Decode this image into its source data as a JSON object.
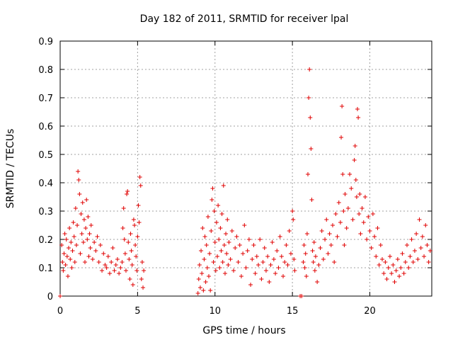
{
  "chart_data": {
    "type": "scatter",
    "title": "Day 182 of 2011, SRMTID for receiver lpal",
    "xlabel": "GPS time / hours",
    "ylabel": "SRMTID / TECUs",
    "xlim": [
      0,
      24
    ],
    "ylim": [
      0,
      0.9
    ],
    "xticks": [
      0,
      5,
      10,
      15,
      20
    ],
    "yticks": [
      0,
      0.1,
      0.2,
      0.3,
      0.4,
      0.5,
      0.6,
      0.7,
      0.8,
      0.9
    ],
    "xtick_labels": [
      "0",
      "5",
      "10",
      "15",
      "20"
    ],
    "ytick_labels": [
      "0",
      "0.1",
      "0.2",
      "0.3",
      "0.4",
      "0.5",
      "0.6",
      "0.7",
      "0.8",
      "0.9"
    ],
    "grid": true,
    "marker": "+",
    "color": "#e00000",
    "series": [
      {
        "name": "SRMTID",
        "points": [
          [
            0.0,
            0.0
          ],
          [
            0.1,
            0.18
          ],
          [
            0.15,
            0.12
          ],
          [
            0.2,
            0.09
          ],
          [
            0.25,
            0.15
          ],
          [
            0.3,
            0.22
          ],
          [
            0.35,
            0.11
          ],
          [
            0.4,
            0.2
          ],
          [
            0.45,
            0.14
          ],
          [
            0.5,
            0.07
          ],
          [
            0.55,
            0.17
          ],
          [
            0.6,
            0.24
          ],
          [
            0.65,
            0.13
          ],
          [
            0.7,
            0.19
          ],
          [
            0.75,
            0.1
          ],
          [
            0.8,
            0.16
          ],
          [
            0.85,
            0.26
          ],
          [
            0.9,
            0.21
          ],
          [
            0.95,
            0.12
          ],
          [
            1.0,
            0.31
          ],
          [
            1.05,
            0.18
          ],
          [
            1.1,
            0.25
          ],
          [
            1.15,
            0.44
          ],
          [
            1.2,
            0.41
          ],
          [
            1.25,
            0.36
          ],
          [
            1.3,
            0.15
          ],
          [
            1.35,
            0.29
          ],
          [
            1.4,
            0.22
          ],
          [
            1.45,
            0.33
          ],
          [
            1.5,
            0.19
          ],
          [
            1.55,
            0.27
          ],
          [
            1.6,
            0.12
          ],
          [
            1.65,
            0.24
          ],
          [
            1.7,
            0.34
          ],
          [
            1.75,
            0.2
          ],
          [
            1.8,
            0.28
          ],
          [
            1.85,
            0.14
          ],
          [
            1.9,
            0.22
          ],
          [
            1.95,
            0.17
          ],
          [
            2.0,
            0.25
          ],
          [
            2.1,
            0.13
          ],
          [
            2.2,
            0.19
          ],
          [
            2.3,
            0.16
          ],
          [
            2.4,
            0.21
          ],
          [
            2.5,
            0.12
          ],
          [
            2.6,
            0.18
          ],
          [
            2.7,
            0.09
          ],
          [
            2.8,
            0.15
          ],
          [
            2.9,
            0.11
          ],
          [
            3.0,
            0.1
          ],
          [
            3.1,
            0.14
          ],
          [
            3.2,
            0.08
          ],
          [
            3.3,
            0.12
          ],
          [
            3.4,
            0.17
          ],
          [
            3.5,
            0.09
          ],
          [
            3.6,
            0.11
          ],
          [
            3.7,
            0.13
          ],
          [
            3.8,
            0.08
          ],
          [
            3.9,
            0.1
          ],
          [
            4.0,
            0.12
          ],
          [
            4.05,
            0.24
          ],
          [
            4.1,
            0.31
          ],
          [
            4.15,
            0.2
          ],
          [
            4.2,
            0.15
          ],
          [
            4.25,
            0.09
          ],
          [
            4.3,
            0.36
          ],
          [
            4.35,
            0.37
          ],
          [
            4.4,
            0.19
          ],
          [
            4.45,
            0.13
          ],
          [
            4.5,
            0.06
          ],
          [
            4.55,
            0.22
          ],
          [
            4.6,
            0.16
          ],
          [
            4.65,
            0.11
          ],
          [
            4.7,
            0.04
          ],
          [
            4.75,
            0.27
          ],
          [
            4.8,
            0.25
          ],
          [
            4.85,
            0.18
          ],
          [
            4.9,
            0.14
          ],
          [
            4.95,
            0.09
          ],
          [
            5.0,
            0.21
          ],
          [
            5.05,
            0.32
          ],
          [
            5.1,
            0.26
          ],
          [
            5.15,
            0.42
          ],
          [
            5.2,
            0.39
          ],
          [
            5.25,
            0.06
          ],
          [
            5.3,
            0.12
          ],
          [
            5.35,
            0.03
          ],
          [
            5.4,
            0.09
          ],
          [
            8.9,
            0.01
          ],
          [
            8.95,
            0.06
          ],
          [
            9.0,
            0.11
          ],
          [
            9.05,
            0.03
          ],
          [
            9.1,
            0.16
          ],
          [
            9.15,
            0.08
          ],
          [
            9.2,
            0.24
          ],
          [
            9.25,
            0.02
          ],
          [
            9.3,
            0.13
          ],
          [
            9.35,
            0.21
          ],
          [
            9.4,
            0.05
          ],
          [
            9.45,
            0.18
          ],
          [
            9.5,
            0.1
          ],
          [
            9.55,
            0.28
          ],
          [
            9.6,
            0.07
          ],
          [
            9.65,
            0.15
          ],
          [
            9.7,
            0.02
          ],
          [
            9.75,
            0.23
          ],
          [
            9.8,
            0.34
          ],
          [
            9.85,
            0.38
          ],
          [
            9.9,
            0.12
          ],
          [
            9.95,
            0.3
          ],
          [
            10.0,
            0.19
          ],
          [
            10.05,
            0.09
          ],
          [
            10.1,
            0.26
          ],
          [
            10.15,
            0.14
          ],
          [
            10.2,
            0.32
          ],
          [
            10.25,
            0.2
          ],
          [
            10.3,
            0.1
          ],
          [
            10.35,
            0.24
          ],
          [
            10.4,
            0.16
          ],
          [
            10.45,
            0.29
          ],
          [
            10.5,
            0.12
          ],
          [
            10.55,
            0.39
          ],
          [
            10.6,
            0.18
          ],
          [
            10.65,
            0.08
          ],
          [
            10.7,
            0.22
          ],
          [
            10.75,
            0.15
          ],
          [
            10.8,
            0.27
          ],
          [
            10.85,
            0.11
          ],
          [
            10.9,
            0.19
          ],
          [
            11.0,
            0.13
          ],
          [
            11.1,
            0.23
          ],
          [
            11.2,
            0.09
          ],
          [
            11.3,
            0.17
          ],
          [
            11.4,
            0.21
          ],
          [
            11.5,
            0.12
          ],
          [
            11.6,
            0.18
          ],
          [
            11.7,
            0.07
          ],
          [
            11.8,
            0.15
          ],
          [
            11.9,
            0.25
          ],
          [
            12.0,
            0.1
          ],
          [
            12.1,
            0.16
          ],
          [
            12.2,
            0.2
          ],
          [
            12.3,
            0.04
          ],
          [
            12.4,
            0.13
          ],
          [
            12.5,
            0.18
          ],
          [
            12.6,
            0.08
          ],
          [
            12.7,
            0.14
          ],
          [
            12.8,
            0.11
          ],
          [
            12.9,
            0.2
          ],
          [
            13.0,
            0.06
          ],
          [
            13.1,
            0.12
          ],
          [
            13.2,
            0.17
          ],
          [
            13.3,
            0.09
          ],
          [
            13.4,
            0.14
          ],
          [
            13.5,
            0.05
          ],
          [
            13.6,
            0.11
          ],
          [
            13.7,
            0.19
          ],
          [
            13.8,
            0.13
          ],
          [
            13.9,
            0.08
          ],
          [
            14.0,
            0.16
          ],
          [
            14.1,
            0.1
          ],
          [
            14.2,
            0.21
          ],
          [
            14.3,
            0.14
          ],
          [
            14.4,
            0.07
          ],
          [
            14.5,
            0.12
          ],
          [
            14.6,
            0.18
          ],
          [
            14.7,
            0.11
          ],
          [
            14.8,
            0.23
          ],
          [
            14.9,
            0.15
          ],
          [
            15.0,
            0.3
          ],
          [
            15.05,
            0.27
          ],
          [
            15.1,
            0.13
          ],
          [
            15.15,
            0.09
          ],
          [
            15.5,
            0.0
          ],
          [
            15.6,
            0.0
          ],
          [
            15.7,
            0.12
          ],
          [
            15.75,
            0.18
          ],
          [
            15.8,
            0.1
          ],
          [
            15.85,
            0.15
          ],
          [
            15.9,
            0.07
          ],
          [
            15.95,
            0.22
          ],
          [
            16.0,
            0.43
          ],
          [
            16.05,
            0.7
          ],
          [
            16.1,
            0.8
          ],
          [
            16.15,
            0.63
          ],
          [
            16.2,
            0.52
          ],
          [
            16.25,
            0.34
          ],
          [
            16.3,
            0.16
          ],
          [
            16.35,
            0.12
          ],
          [
            16.4,
            0.19
          ],
          [
            16.45,
            0.09
          ],
          [
            16.5,
            0.14
          ],
          [
            16.6,
            0.05
          ],
          [
            16.7,
            0.11
          ],
          [
            16.8,
            0.17
          ],
          [
            16.9,
            0.23
          ],
          [
            17.0,
            0.13
          ],
          [
            17.1,
            0.2
          ],
          [
            17.2,
            0.27
          ],
          [
            17.3,
            0.15
          ],
          [
            17.4,
            0.22
          ],
          [
            17.5,
            0.18
          ],
          [
            17.6,
            0.25
          ],
          [
            17.7,
            0.12
          ],
          [
            17.8,
            0.29
          ],
          [
            17.9,
            0.21
          ],
          [
            18.0,
            0.33
          ],
          [
            18.1,
            0.26
          ],
          [
            18.15,
            0.56
          ],
          [
            18.2,
            0.67
          ],
          [
            18.25,
            0.43
          ],
          [
            18.3,
            0.3
          ],
          [
            18.35,
            0.18
          ],
          [
            18.4,
            0.36
          ],
          [
            18.5,
            0.24
          ],
          [
            18.6,
            0.31
          ],
          [
            18.7,
            0.43
          ],
          [
            18.8,
            0.38
          ],
          [
            18.9,
            0.27
          ],
          [
            19.0,
            0.48
          ],
          [
            19.05,
            0.53
          ],
          [
            19.1,
            0.41
          ],
          [
            19.15,
            0.35
          ],
          [
            19.2,
            0.66
          ],
          [
            19.25,
            0.63
          ],
          [
            19.3,
            0.29
          ],
          [
            19.35,
            0.36
          ],
          [
            19.4,
            0.22
          ],
          [
            19.5,
            0.31
          ],
          [
            19.6,
            0.26
          ],
          [
            19.7,
            0.35
          ],
          [
            19.8,
            0.2
          ],
          [
            19.9,
            0.28
          ],
          [
            20.0,
            0.23
          ],
          [
            20.1,
            0.17
          ],
          [
            20.2,
            0.29
          ],
          [
            20.3,
            0.21
          ],
          [
            20.4,
            0.14
          ],
          [
            20.5,
            0.24
          ],
          [
            20.6,
            0.11
          ],
          [
            20.7,
            0.18
          ],
          [
            20.8,
            0.13
          ],
          [
            20.9,
            0.08
          ],
          [
            21.0,
            0.12
          ],
          [
            21.1,
            0.06
          ],
          [
            21.2,
            0.1
          ],
          [
            21.3,
            0.14
          ],
          [
            21.4,
            0.08
          ],
          [
            21.5,
            0.11
          ],
          [
            21.6,
            0.05
          ],
          [
            21.7,
            0.09
          ],
          [
            21.8,
            0.13
          ],
          [
            21.9,
            0.07
          ],
          [
            22.0,
            0.1
          ],
          [
            22.1,
            0.15
          ],
          [
            22.2,
            0.08
          ],
          [
            22.3,
            0.12
          ],
          [
            22.4,
            0.18
          ],
          [
            22.5,
            0.1
          ],
          [
            22.6,
            0.14
          ],
          [
            22.7,
            0.2
          ],
          [
            22.8,
            0.12
          ],
          [
            22.9,
            0.16
          ],
          [
            23.0,
            0.22
          ],
          [
            23.1,
            0.13
          ],
          [
            23.2,
            0.27
          ],
          [
            23.3,
            0.17
          ],
          [
            23.4,
            0.21
          ],
          [
            23.5,
            0.14
          ],
          [
            23.6,
            0.25
          ],
          [
            23.7,
            0.18
          ],
          [
            23.8,
            0.12
          ],
          [
            23.9,
            0.16
          ]
        ]
      }
    ]
  }
}
